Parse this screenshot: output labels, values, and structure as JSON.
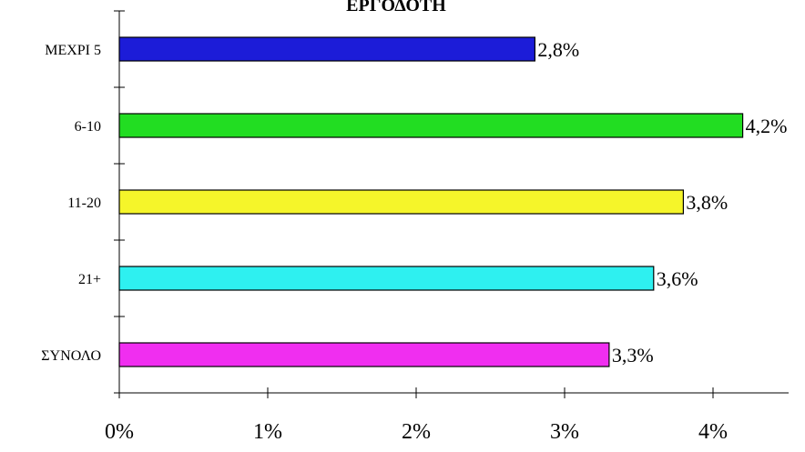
{
  "chart_data": {
    "type": "bar",
    "orientation": "horizontal",
    "title": "ΕΡΓΟΔΟΤΗ",
    "categories": [
      "ΜΕΧΡΙ 5",
      "6-10",
      "11-20",
      "21+",
      "ΣΥΝΟΛΟ"
    ],
    "values": [
      2.8,
      4.2,
      3.8,
      3.6,
      3.3
    ],
    "data_labels": [
      "2,8%",
      "4,2%",
      "3,8%",
      "3,6%",
      "3,3%"
    ],
    "colors": [
      "#1c1cd8",
      "#22dd22",
      "#f5f52a",
      "#2ef0f0",
      "#f02ef0"
    ],
    "x_ticks": [
      "0%",
      "1%",
      "2%",
      "3%",
      "4%"
    ],
    "xlim": [
      0,
      4.5
    ],
    "xlabel": "",
    "ylabel": "",
    "grid": false,
    "legend": "none"
  }
}
